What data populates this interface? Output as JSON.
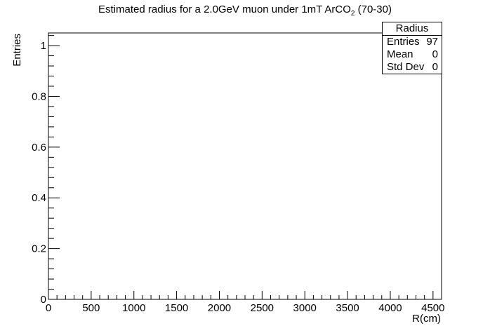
{
  "chart_data": {
    "type": "bar",
    "title_main": "Estimated radius for a 2.0GeV muon under 1mT ArCO",
    "title_sub": "2",
    "title_tail": " (70-30)",
    "xlabel": "R(cm)",
    "ylabel": "Entries",
    "xlim": [
      0,
      4600
    ],
    "ylim": [
      0,
      1.05
    ],
    "x_ticks": [
      0,
      500,
      1000,
      1500,
      2000,
      2500,
      3000,
      3500,
      4000,
      4500
    ],
    "y_ticks": [
      0,
      0.2,
      0.4,
      0.6,
      0.8,
      1
    ],
    "x_tick_labels": [
      "0",
      "500",
      "1000",
      "1500",
      "2000",
      "2500",
      "3000",
      "3500",
      "4000",
      "4500"
    ],
    "y_tick_labels": [
      "0",
      "0.2",
      "0.4",
      "0.6",
      "0.8",
      "1"
    ],
    "grid": false,
    "legend": "none",
    "series": []
  },
  "stats": {
    "header": "Radius",
    "rows": [
      {
        "label": "Entries",
        "value": "97"
      },
      {
        "label": "Mean",
        "value": "0"
      },
      {
        "label": "Std Dev",
        "value": "0"
      }
    ]
  }
}
